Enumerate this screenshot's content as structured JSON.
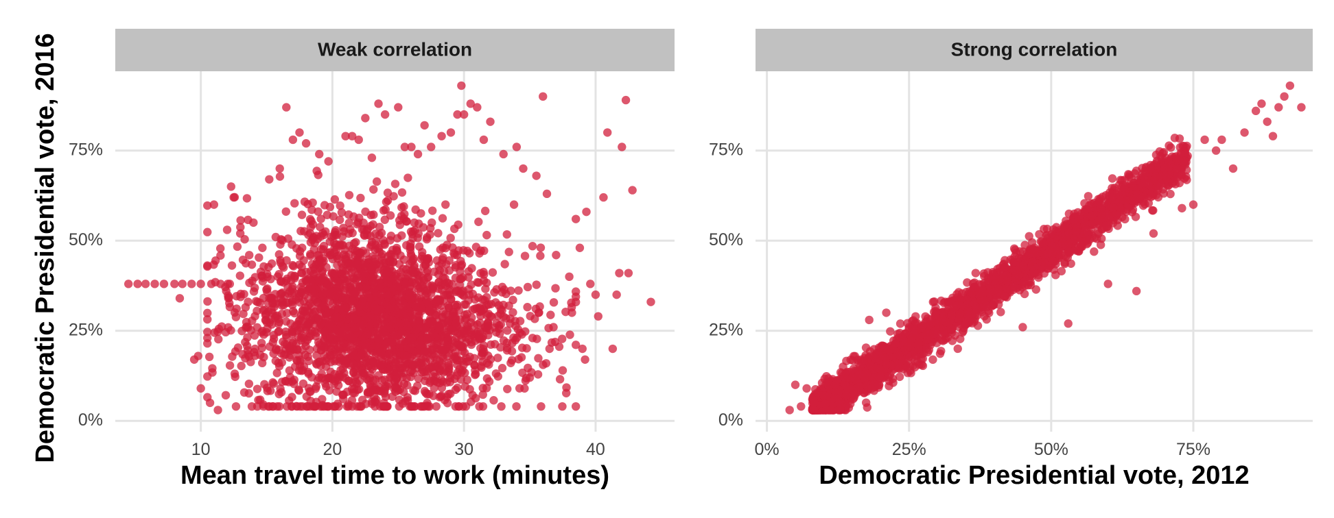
{
  "chart_data": {
    "type": "scatter",
    "y_axis_title": "Democratic Presidential vote, 2016",
    "point_color": "#d21f3c",
    "strip_color": "#c1c1c1",
    "grid": true,
    "panels": [
      {
        "strip_label": "Weak correlation",
        "xlabel": "Mean travel time to work (minutes)",
        "xlim": [
          3.5,
          46
        ],
        "ylim": [
          -0.03,
          0.97
        ],
        "x_ticks": [
          {
            "value": 10,
            "label": "10"
          },
          {
            "value": 20,
            "label": "20"
          },
          {
            "value": 30,
            "label": "30"
          },
          {
            "value": 40,
            "label": "40"
          }
        ],
        "y_ticks": [
          {
            "value": 0,
            "label": "0%"
          },
          {
            "value": 0.25,
            "label": "25%"
          },
          {
            "value": 0.5,
            "label": "50%"
          },
          {
            "value": 0.75,
            "label": "75%"
          }
        ],
        "points": [
          [
            4.5,
            0.38
          ],
          [
            5.2,
            0.38
          ],
          [
            5.8,
            0.38
          ],
          [
            6.5,
            0.38
          ],
          [
            7.2,
            0.38
          ],
          [
            8.0,
            0.38
          ],
          [
            8.6,
            0.38
          ],
          [
            9.3,
            0.38
          ],
          [
            10.0,
            0.38
          ],
          [
            10.8,
            0.38
          ],
          [
            11.5,
            0.38
          ],
          [
            12.2,
            0.38
          ],
          [
            8.4,
            0.34
          ],
          [
            9.5,
            0.17
          ],
          [
            9.8,
            0.18
          ],
          [
            10.0,
            0.09
          ],
          [
            10.7,
            0.05
          ],
          [
            11.0,
            0.6
          ],
          [
            11.3,
            0.03
          ],
          [
            12.0,
            0.53
          ],
          [
            12.3,
            0.65
          ],
          [
            12.5,
            0.62
          ],
          [
            13.0,
            0.52
          ],
          [
            14.0,
            0.55
          ],
          [
            15.2,
            0.67
          ],
          [
            16.0,
            0.7
          ],
          [
            16.5,
            0.87
          ],
          [
            17.0,
            0.78
          ],
          [
            17.5,
            0.8
          ],
          [
            18.0,
            0.77
          ],
          [
            19.0,
            0.74
          ],
          [
            19.7,
            0.72
          ],
          [
            21.0,
            0.79
          ],
          [
            21.5,
            0.79
          ],
          [
            22.0,
            0.78
          ],
          [
            22.5,
            0.84
          ],
          [
            23.0,
            0.73
          ],
          [
            23.5,
            0.88
          ],
          [
            24.0,
            0.85
          ],
          [
            25.0,
            0.87
          ],
          [
            25.5,
            0.76
          ],
          [
            26.0,
            0.76
          ],
          [
            26.5,
            0.74
          ],
          [
            27.0,
            0.82
          ],
          [
            27.5,
            0.76
          ],
          [
            28.3,
            0.79
          ],
          [
            29.0,
            0.8
          ],
          [
            29.5,
            0.85
          ],
          [
            29.8,
            0.93
          ],
          [
            30.0,
            0.85
          ],
          [
            30.5,
            0.88
          ],
          [
            31.0,
            0.87
          ],
          [
            31.5,
            0.78
          ],
          [
            32.0,
            0.83
          ],
          [
            33.0,
            0.74
          ],
          [
            34.0,
            0.76
          ],
          [
            34.5,
            0.7
          ],
          [
            35.5,
            0.68
          ],
          [
            36.0,
            0.9
          ],
          [
            36.3,
            0.63
          ],
          [
            37.0,
            0.46
          ],
          [
            38.0,
            0.4
          ],
          [
            38.5,
            0.56
          ],
          [
            38.8,
            0.48
          ],
          [
            39.3,
            0.58
          ],
          [
            39.0,
            0.2
          ],
          [
            39.2,
            0.17
          ],
          [
            39.6,
            0.38
          ],
          [
            40.0,
            0.35
          ],
          [
            40.2,
            0.29
          ],
          [
            40.6,
            0.62
          ],
          [
            40.9,
            0.8
          ],
          [
            41.3,
            0.2
          ],
          [
            41.6,
            0.35
          ],
          [
            41.8,
            0.41
          ],
          [
            42.0,
            0.76
          ],
          [
            42.3,
            0.89
          ],
          [
            42.5,
            0.41
          ],
          [
            42.8,
            0.64
          ],
          [
            44.2,
            0.33
          ],
          [
            36.5,
            0.2
          ],
          [
            37.5,
            0.14
          ],
          [
            36.8,
            0.26
          ],
          [
            38.2,
            0.3
          ],
          [
            35.0,
            0.12
          ],
          [
            34.6,
            0.09
          ],
          [
            33.5,
            0.27
          ],
          [
            33.8,
            0.6
          ]
        ],
        "cluster_note": "dense cloud of ~3000 points centered near x≈22, y≈0.30"
      },
      {
        "strip_label": "Strong correlation",
        "xlabel": "Democratic Presidential vote, 2012",
        "xlim": [
          -0.02,
          0.96
        ],
        "ylim": [
          -0.03,
          0.97
        ],
        "x_ticks": [
          {
            "value": 0,
            "label": "0%"
          },
          {
            "value": 0.25,
            "label": "25%"
          },
          {
            "value": 0.5,
            "label": "50%"
          },
          {
            "value": 0.75,
            "label": "75%"
          }
        ],
        "y_ticks": [
          {
            "value": 0,
            "label": "0%"
          },
          {
            "value": 0.25,
            "label": "25%"
          },
          {
            "value": 0.5,
            "label": "50%"
          },
          {
            "value": 0.75,
            "label": "75%"
          }
        ],
        "points": [
          [
            0.04,
            0.03
          ],
          [
            0.05,
            0.1
          ],
          [
            0.07,
            0.09
          ],
          [
            0.06,
            0.04
          ],
          [
            0.08,
            0.06
          ],
          [
            0.1,
            0.07
          ],
          [
            0.12,
            0.1
          ],
          [
            0.15,
            0.12
          ],
          [
            0.18,
            0.28
          ],
          [
            0.21,
            0.3
          ],
          [
            0.25,
            0.26
          ],
          [
            0.45,
            0.26
          ],
          [
            0.53,
            0.27
          ],
          [
            0.6,
            0.38
          ],
          [
            0.65,
            0.36
          ],
          [
            0.68,
            0.52
          ],
          [
            0.7,
            0.7
          ],
          [
            0.73,
            0.59
          ],
          [
            0.75,
            0.6
          ],
          [
            0.77,
            0.78
          ],
          [
            0.79,
            0.75
          ],
          [
            0.8,
            0.78
          ],
          [
            0.82,
            0.7
          ],
          [
            0.84,
            0.8
          ],
          [
            0.86,
            0.86
          ],
          [
            0.87,
            0.88
          ],
          [
            0.88,
            0.83
          ],
          [
            0.89,
            0.79
          ],
          [
            0.9,
            0.87
          ],
          [
            0.91,
            0.9
          ],
          [
            0.92,
            0.93
          ],
          [
            0.94,
            0.87
          ]
        ],
        "cluster_note": "dense band of ~3000 points along y≈1.05x−0.05"
      }
    ]
  }
}
